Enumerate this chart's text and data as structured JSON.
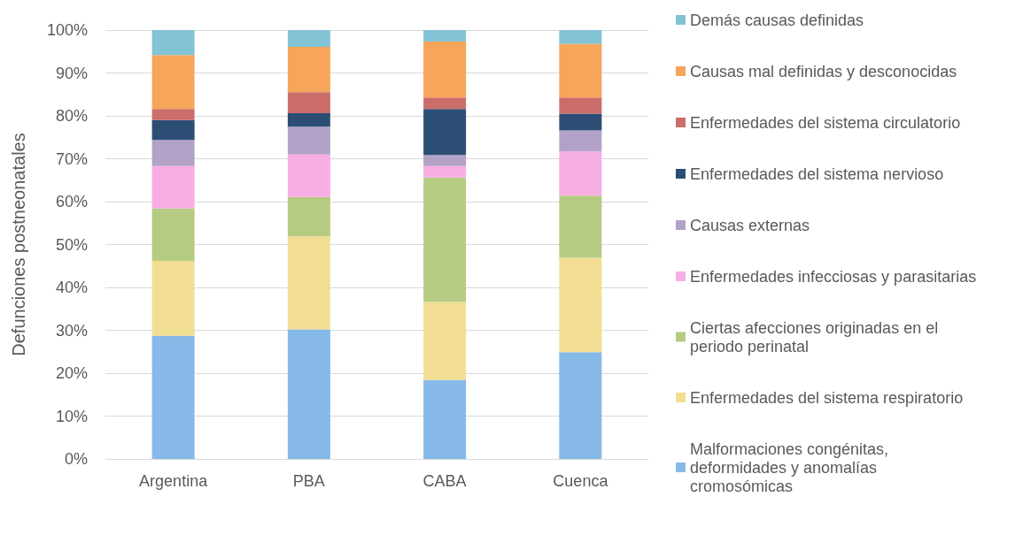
{
  "chart_data": {
    "type": "bar",
    "ylabel": "Defunciones postneonatales",
    "categories": [
      "Argentina",
      "PBA",
      "CABA",
      "Cuenca"
    ],
    "stacked": true,
    "ylim": [
      0,
      100
    ],
    "yticks": [
      {
        "value": 0,
        "label": "0%"
      },
      {
        "value": 10,
        "label": "10%"
      },
      {
        "value": 20,
        "label": "20%"
      },
      {
        "value": 30,
        "label": "30%"
      },
      {
        "value": 40,
        "label": "40%"
      },
      {
        "value": 50,
        "label": "50%"
      },
      {
        "value": 60,
        "label": "60%"
      },
      {
        "value": 70,
        "label": "70%"
      },
      {
        "value": 80,
        "label": "80%"
      },
      {
        "value": 90,
        "label": "90%"
      },
      {
        "value": 100,
        "label": "100%"
      }
    ],
    "grid": "y",
    "legend": "right",
    "series": [
      {
        "name": "Malformaciones congénitas, deformidades y anomalías cromosómicas",
        "color": "#86b9e8",
        "values": [
          28.7,
          30.2,
          18.4,
          24.9
        ]
      },
      {
        "name": "Enfermedades del sistema respiratorio",
        "color": "#f2de93",
        "values": [
          17.5,
          21.7,
          18.2,
          22.0
        ]
      },
      {
        "name": "Ciertas afecciones originadas en el periodo perinatal",
        "color": "#b5cb82",
        "values": [
          12.2,
          9.2,
          29.0,
          14.5
        ]
      },
      {
        "name": "Enfermedades infecciosas y parasitarias",
        "color": "#f7aee3",
        "values": [
          9.9,
          9.9,
          2.7,
          10.3
        ]
      },
      {
        "name": "Causas externas",
        "color": "#b2a2c8",
        "values": [
          6.1,
          6.5,
          2.6,
          4.9
        ]
      },
      {
        "name": "Enfermedades del sistema nervioso",
        "color": "#2c4e75",
        "values": [
          4.6,
          3.1,
          10.7,
          3.9
        ]
      },
      {
        "name": "Enfermedades del sistema circulatorio",
        "color": "#cb6d6a",
        "values": [
          2.6,
          4.9,
          2.7,
          3.8
        ]
      },
      {
        "name": "Causas mal definidas y desconocidas",
        "color": "#f6a55b",
        "values": [
          12.6,
          10.6,
          13.0,
          12.5
        ]
      },
      {
        "name": "Demás causas definidas",
        "color": "#82c3d5",
        "values": [
          5.8,
          3.9,
          2.7,
          3.2
        ]
      }
    ]
  }
}
